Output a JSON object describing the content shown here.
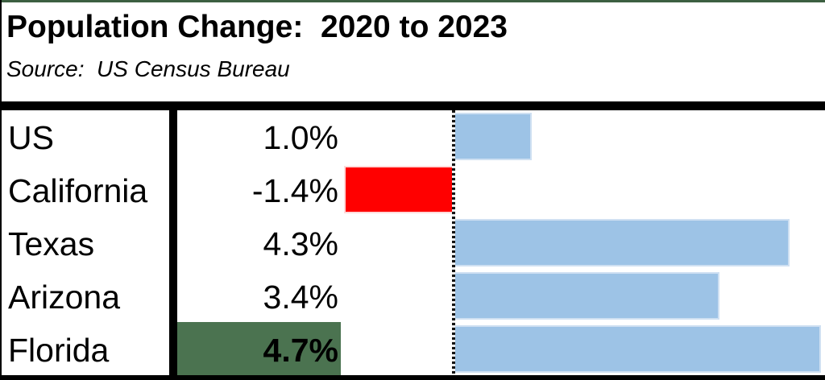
{
  "chart_data": {
    "type": "bar",
    "orientation": "horizontal",
    "title": "Population Change:  2020 to 2023",
    "subtitle": "Source:  US Census Bureau",
    "categories": [
      "US",
      "California",
      "Texas",
      "Arizona",
      "Florida"
    ],
    "values": [
      1.0,
      -1.4,
      4.3,
      3.4,
      4.7
    ],
    "rows": [
      {
        "label": "US",
        "value": 1.0,
        "value_label": "1.0%",
        "negative": false,
        "highlighted": false
      },
      {
        "label": "California",
        "value": -1.4,
        "value_label": "-1.4%",
        "negative": true,
        "highlighted": false
      },
      {
        "label": "Texas",
        "value": 4.3,
        "value_label": "4.3%",
        "negative": false,
        "highlighted": false
      },
      {
        "label": "Arizona",
        "value": 3.4,
        "value_label": "3.4%",
        "negative": false,
        "highlighted": false
      },
      {
        "label": "Florida",
        "value": 4.7,
        "value_label": "4.7%",
        "negative": false,
        "highlighted": true
      }
    ],
    "xlim": [
      -1.45,
      4.75
    ],
    "zero_axis": true,
    "grid": false,
    "legend": false,
    "colors": {
      "positive_bar": "#9dc3e6",
      "positive_bar_border": "#cfe0f2",
      "negative_bar": "#ff0000",
      "highlight_cell": "#4b7350",
      "top_border": "#3c5f41",
      "rule_and_divider": "#000000",
      "text": "#000000",
      "background": "#ffffff"
    }
  }
}
